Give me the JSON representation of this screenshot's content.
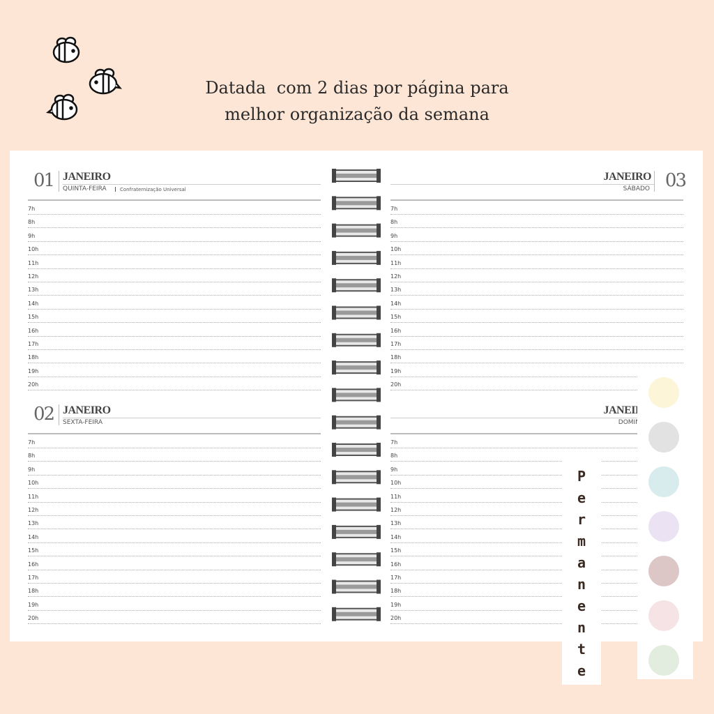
{
  "header": {
    "lines": [
      "Datada  com 2 dias por página para",
      "melhor organização da semana"
    ]
  },
  "hours": [
    "7h",
    "8h",
    "9h",
    "10h",
    "11h",
    "12h",
    "13h",
    "14h",
    "15h",
    "16h",
    "17h",
    "18h",
    "19h",
    "20h"
  ],
  "days": [
    {
      "number": "01",
      "month": "JANEIRO",
      "weekday": "QUINTA-FEIRA",
      "note": "Confraternização Universal"
    },
    {
      "number": "02",
      "month": "JANEIRO",
      "weekday": "SEXTA-FEIRA"
    },
    {
      "number": "03",
      "month": "JANEIRO",
      "weekday": "SÁBADO"
    },
    {
      "month": "JANEIRO",
      "weekday": "DOMINGO"
    }
  ],
  "tab": {
    "label": "Permanente"
  },
  "swatches": [
    "#fdf5d8",
    "#e2e2e2",
    "#d8ecee",
    "#ebe3f3",
    "#dcc7c6",
    "#f5e3e6",
    "#e2ecdf"
  ]
}
